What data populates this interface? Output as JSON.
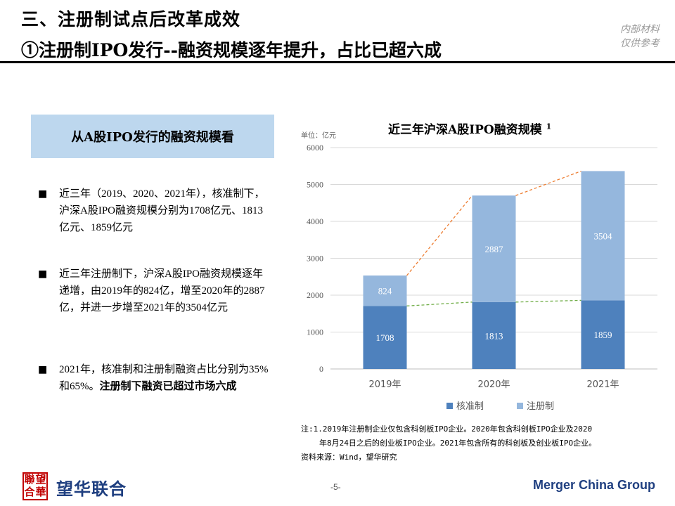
{
  "header": {
    "title_line1": "三、注册制试点后改革成效",
    "title_line2": "①注册制IPO发行--融资规模逐年提升，占比已超六成",
    "stamp_line1": "内部材料",
    "stamp_line2": "仅供参考"
  },
  "left_panel": {
    "box_title": "从A股IPO发行的融资规模看",
    "bullet_mark": "■",
    "bullets": [
      {
        "text": "近三年（2019、2020、2021年），核准制下，沪深A股IPO融资规模分别为1708亿元、1813亿元、1859亿元"
      },
      {
        "text": "近三年注册制下，沪深A股IPO融资规模逐年递增，由2019年的824亿，增至2020年的2887亿，并进一步增至2021年的3504亿元"
      },
      {
        "text": "2021年，核准制和注册制融资占比分别为35%和65%。",
        "bold": "注册制下融资已超过市场六成"
      }
    ]
  },
  "chart_data": {
    "type": "bar",
    "stacked": true,
    "title": "近三年沪深A股IPO融资规模",
    "title_sup": "1",
    "unit_label": "单位：亿元",
    "categories": [
      "2019年",
      "2020年",
      "2021年"
    ],
    "series": [
      {
        "name": "核准制",
        "values": [
          1708,
          1813,
          1859
        ],
        "color": "#4e81bd"
      },
      {
        "name": "注册制",
        "values": [
          824,
          2887,
          3504
        ],
        "color": "#95b7dd"
      }
    ],
    "ylim": [
      0,
      6000
    ],
    "yticks": [
      0,
      1000,
      2000,
      3000,
      4000,
      5000,
      6000
    ],
    "grid": true,
    "legend_position": "bottom",
    "trend_lines": [
      {
        "values": [
          1708,
          1813,
          1859
        ],
        "color": "#70ad47",
        "style": "dashed"
      },
      {
        "values": [
          2532,
          4700,
          5363
        ],
        "color": "#ed7d31",
        "style": "dashed"
      }
    ]
  },
  "footnotes": {
    "line1": "注:1.2019年注册制企业仅包含科创板IPO企业。2020年包含科创板IPO企业及2020",
    "line2": "年8月24日之后的创业板IPO企业。2021年包含所有的科创板及创业板IPO企业。",
    "line3": "资料来源：Wind，望华研究"
  },
  "footer": {
    "seal_chars": [
      "聯",
      "望",
      "合",
      "華"
    ],
    "logo_text": "望华联合",
    "page_number": "-5-",
    "brand": "Merger China Group"
  }
}
